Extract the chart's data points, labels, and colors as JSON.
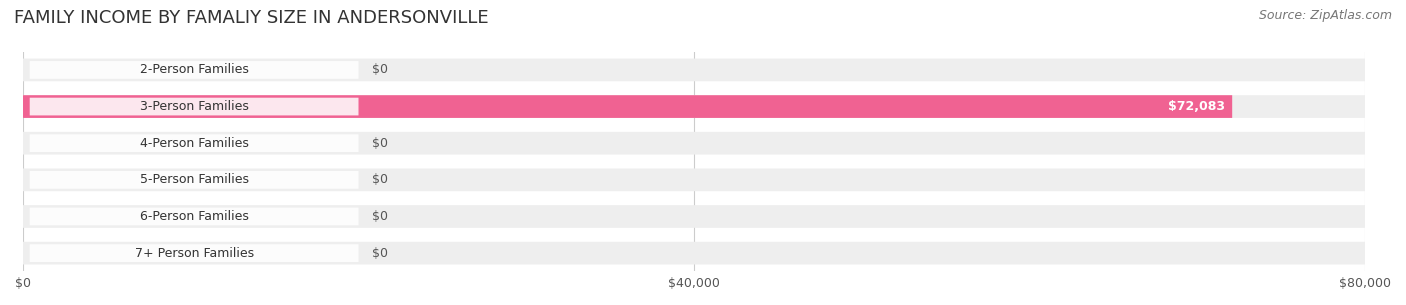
{
  "title": "FAMILY INCOME BY FAMALIY SIZE IN ANDERSONVILLE",
  "source": "Source: ZipAtlas.com",
  "categories": [
    "2-Person Families",
    "3-Person Families",
    "4-Person Families",
    "5-Person Families",
    "6-Person Families",
    "7+ Person Families"
  ],
  "values": [
    0,
    72083,
    0,
    0,
    0,
    0
  ],
  "bar_colors": [
    "#9fa8d5",
    "#f06292",
    "#f5c97f",
    "#f4a39a",
    "#9fc5e8",
    "#c9a7d8"
  ],
  "label_colors": [
    "#9fa8d5",
    "#f06292",
    "#f5c97f",
    "#f4a39a",
    "#9fc5e8",
    "#c9a7d8"
  ],
  "xlim": [
    0,
    80000
  ],
  "xticks": [
    0,
    40000,
    80000
  ],
  "xticklabels": [
    "$0",
    "$40,000",
    "$80,000"
  ],
  "background_color": "#ffffff",
  "bar_bg_color": "#eeeeee",
  "title_fontsize": 13,
  "source_fontsize": 9,
  "label_fontsize": 9,
  "value_label_color": "#ffffff",
  "zero_label_color": "#555555"
}
